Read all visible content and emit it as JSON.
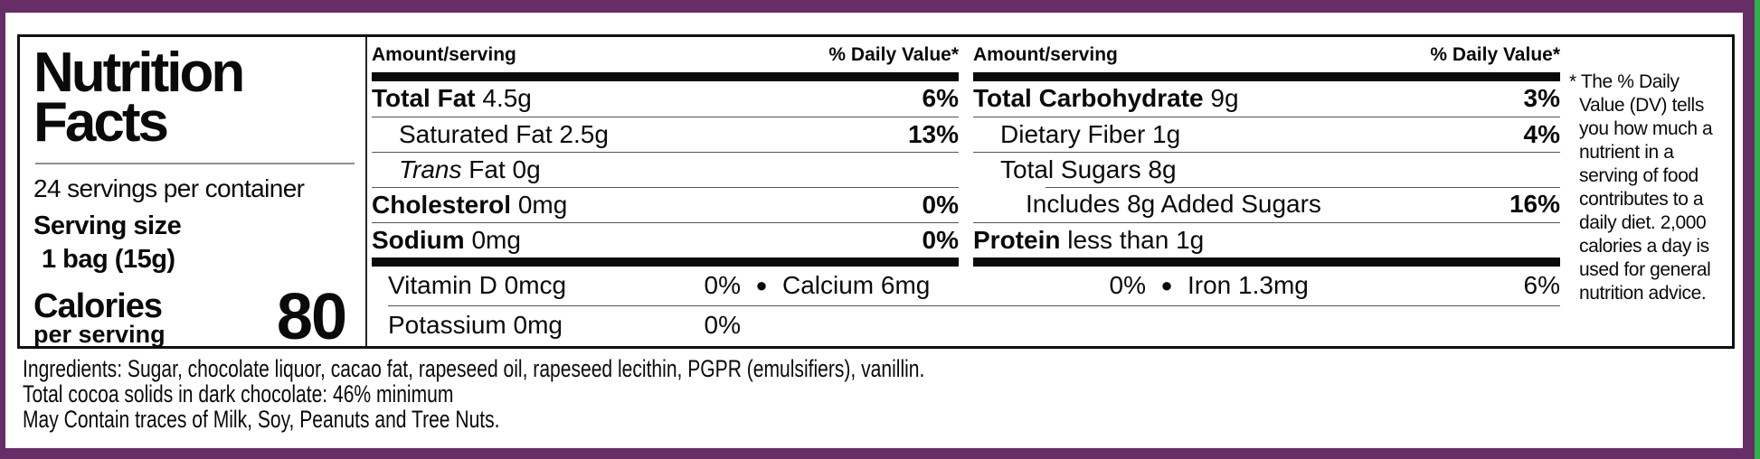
{
  "colors": {
    "frame_purple": "#662d66",
    "edge_green": "#2fae4c"
  },
  "panel": {
    "title_line1": "Nutrition",
    "title_line2": "Facts",
    "servings_per_container": "24 servings per container",
    "serving_size_label": "Serving size",
    "serving_size_value": "1 bag (15g)",
    "calories_label": "Calories",
    "calories_sublabel": "per serving",
    "calories_value": "80"
  },
  "columns": [
    {
      "amount_header": "Amount/serving",
      "dv_header": "% Daily Value*",
      "rows": [
        {
          "strong": "Total Fat",
          "rest": "4.5g",
          "dv": "6%"
        },
        {
          "rest": "Saturated Fat 2.5g",
          "dv": "13%"
        },
        {
          "em": "Trans",
          "rest": "Fat 0g",
          "dv": ""
        },
        {
          "strong": "Cholesterol",
          "rest": "0mg",
          "dv": "0%"
        },
        {
          "strong": "Sodium",
          "rest": "0mg",
          "dv": "0%"
        }
      ]
    },
    {
      "amount_header": "Amount/serving",
      "dv_header": "% Daily Value*",
      "rows": [
        {
          "strong": "Total Carbohydrate",
          "rest": "9g",
          "dv": "3%"
        },
        {
          "rest": "Dietary Fiber 1g",
          "dv": "4%"
        },
        {
          "rest": "Total Sugars 8g",
          "dv": ""
        },
        {
          "rest": "Includes 8g Added Sugars",
          "dv": "16%"
        },
        {
          "strong": "Protein",
          "rest": "less than 1g",
          "dv": ""
        }
      ]
    }
  ],
  "micronutrients": {
    "bullet": "●",
    "vitamin_d": "Vitamin D 0mcg",
    "vitamin_d_dv": "0%",
    "calcium": "Calcium 6mg",
    "calcium_dv": "0%",
    "iron": "Iron 1.3mg",
    "iron_dv": "6%",
    "potassium": "Potassium 0mg",
    "potassium_dv": "0%"
  },
  "footnote": "* The % Daily Value (DV) tells you how much a nutrient in a serving of food contributes to a daily diet. 2,000 calories a day is used for general nutrition advice.",
  "ingredients": {
    "line1": "Ingredients: Sugar, chocolate liquor, cacao fat, rapeseed oil, rapeseed lecithin, PGPR (emulsifiers), vanillin.",
    "line2": "Total cocoa solids in dark chocolate: 46% minimum",
    "line3": "May Contain traces of Milk, Soy, Peanuts and Tree Nuts."
  }
}
